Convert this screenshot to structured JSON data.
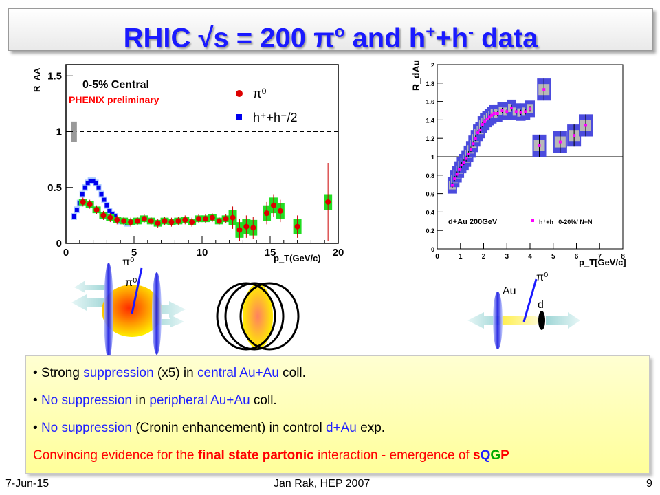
{
  "title": {
    "main": "RHIC √s = 200 π",
    "sup1": "o",
    "mid": " and h",
    "sup2": "+",
    "mid2": "+h",
    "sup3": "-",
    "end": " data"
  },
  "colors": {
    "title": "#1a1aff",
    "pi0": "#ff0000",
    "hadron": "#0000ff",
    "sys_box": "#33cc33",
    "highlight": "#ff0000",
    "summary_bg": "#ffff9a"
  },
  "chart_data": [
    {
      "type": "scatter",
      "ylabel": "R_AA",
      "xlabel": "p_T(GeV/c)",
      "xlim": [
        0,
        20
      ],
      "ylim": [
        0,
        1.6
      ],
      "xticks": [
        "0",
        "5",
        "10",
        "15",
        "20"
      ],
      "yticks": [
        "0",
        "0.5",
        "1",
        "1.5"
      ],
      "annotations": [
        "0-5% Central",
        "PHENIX preliminary"
      ],
      "legend": [
        "π⁰",
        "h⁺+h⁻/2"
      ],
      "reference_line": 1,
      "series": [
        {
          "name": "π⁰",
          "x": [
            1.25,
            1.75,
            2.25,
            2.75,
            3.25,
            3.75,
            4.25,
            4.75,
            5.25,
            5.75,
            6.25,
            6.75,
            7.25,
            7.75,
            8.25,
            8.75,
            9.25,
            9.75,
            10.25,
            10.75,
            11.25,
            11.75,
            12.25,
            12.75,
            13.25,
            13.75,
            14.75,
            15.25,
            15.75,
            17.0,
            19.25
          ],
          "y": [
            0.37,
            0.35,
            0.3,
            0.25,
            0.23,
            0.21,
            0.2,
            0.19,
            0.2,
            0.22,
            0.2,
            0.18,
            0.2,
            0.19,
            0.2,
            0.21,
            0.19,
            0.22,
            0.22,
            0.23,
            0.2,
            0.22,
            0.23,
            0.12,
            0.15,
            0.14,
            0.27,
            0.34,
            0.29,
            0.15,
            0.37
          ]
        },
        {
          "name": "h⁺+h⁻/2",
          "x": [
            0.6,
            0.8,
            1.0,
            1.2,
            1.4,
            1.6,
            1.8,
            2.0,
            2.2,
            2.4,
            2.6,
            2.8,
            3.0,
            3.2,
            3.4,
            3.6,
            3.8,
            4.0,
            4.5
          ],
          "y": [
            0.24,
            0.3,
            0.36,
            0.44,
            0.5,
            0.54,
            0.56,
            0.56,
            0.54,
            0.5,
            0.44,
            0.39,
            0.34,
            0.29,
            0.26,
            0.24,
            0.21,
            0.2,
            0.18
          ]
        }
      ]
    },
    {
      "type": "scatter",
      "ylabel": "R_dAu",
      "xlabel": "p_T[GeV/c]",
      "xlim": [
        0,
        8
      ],
      "ylim": [
        0,
        2
      ],
      "xticks": [
        "0",
        "1",
        "2",
        "3",
        "4",
        "5",
        "6",
        "7",
        "8"
      ],
      "yticks": [
        "0",
        "0.2",
        "0.4",
        "0.6",
        "0.8",
        "1",
        "1.2",
        "1.4",
        "1.6",
        "1.8",
        "2"
      ],
      "annotations": [
        "d+Au 200GeV"
      ],
      "legend": [
        "h⁺+h⁻ 0-20%/ N+N"
      ],
      "reference_line": 1,
      "series": [
        {
          "name": "h⁺+h⁻ 0-20%/ N+N",
          "x": [
            0.65,
            0.75,
            0.85,
            0.95,
            1.05,
            1.15,
            1.25,
            1.35,
            1.45,
            1.55,
            1.65,
            1.75,
            1.85,
            1.95,
            2.05,
            2.15,
            2.25,
            2.35,
            2.45,
            2.6,
            2.8,
            3.0,
            3.2,
            3.4,
            3.6,
            3.8,
            4.0,
            4.4,
            4.6,
            5.3,
            5.9,
            6.4
          ],
          "y": [
            0.69,
            0.76,
            0.81,
            0.86,
            0.91,
            0.94,
            0.98,
            1.03,
            1.08,
            1.14,
            1.2,
            1.26,
            1.29,
            1.35,
            1.38,
            1.41,
            1.43,
            1.45,
            1.47,
            1.47,
            1.5,
            1.49,
            1.53,
            1.49,
            1.48,
            1.49,
            1.52,
            1.12,
            1.73,
            1.16,
            1.23,
            1.34
          ]
        }
      ]
    }
  ],
  "diagrams": {
    "pi0_top": "π⁰",
    "pi0_mid": "π⁰",
    "pi0_dau": "π⁰",
    "au_label": "Au",
    "d_label": "d"
  },
  "summary": {
    "line1": {
      "a": "Strong ",
      "b": "suppression",
      "c": " (x5) in ",
      "d": "central Au+Au",
      "e": " coll."
    },
    "line2": {
      "a": "No suppression",
      "b": " in ",
      "c": "peripheral Au+Au",
      "d": " coll."
    },
    "line3": {
      "a": "No suppression",
      "b": " (Cronin enhancement) in control ",
      "c": "d+Au",
      "d": " exp."
    },
    "line4": {
      "a": "Convincing evidence for the ",
      "b": "final state partonic",
      "c": " interaction - emergence of ",
      "d": "s",
      "e": "Q",
      "f": "G",
      "g": "P"
    }
  },
  "footer": {
    "date": "7-Jun-15",
    "center": "Jan Rak, HEP 2007",
    "page": "9"
  }
}
